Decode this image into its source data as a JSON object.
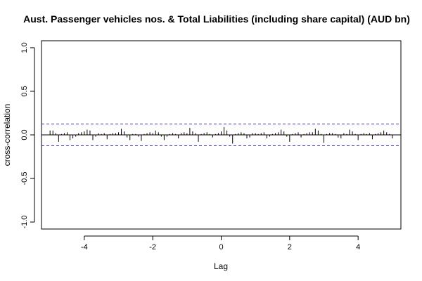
{
  "chart_data": {
    "type": "bar",
    "title": "Aust. Passenger vehicles nos. & Total Liabilities (including share capital) (AUD bn)",
    "xlabel": "Lag",
    "ylabel": "cross-correlation",
    "xlim": [
      -5.25,
      5.25
    ],
    "ylim": [
      -1.08,
      1.08
    ],
    "x_ticks": [
      -4,
      -2,
      0,
      2,
      4
    ],
    "x_tick_labels": [
      "-4",
      "-2",
      "0",
      "2",
      "4"
    ],
    "y_ticks": [
      -1.0,
      -0.5,
      0.0,
      0.5,
      1.0
    ],
    "y_tick_labels": [
      "-1.0",
      "-0.5",
      "0.0",
      "0.5",
      "1.0"
    ],
    "confidence_bound": 0.125,
    "confidence_color": "#3333cc",
    "bar_color": "#000000",
    "zero_line": true,
    "x_start": -5.0,
    "x_end": 5.0,
    "x_step": 0.0833333,
    "values": [
      0.05,
      0.05,
      0.02,
      -0.08,
      0.01,
      0.02,
      0.03,
      -0.06,
      -0.04,
      -0.02,
      0.02,
      0.03,
      0.04,
      0.06,
      0.05,
      -0.06,
      -0.02,
      0.02,
      0.01,
      0.02,
      -0.05,
      0.01,
      0.02,
      0.02,
      0.03,
      0.07,
      0.04,
      -0.03,
      -0.06,
      0.01,
      0.01,
      -0.02,
      -0.07,
      0.01,
      0.02,
      0.03,
      0.02,
      0.05,
      0.03,
      -0.02,
      -0.06,
      -0.02,
      0.01,
      0.02,
      0.01,
      -0.04,
      0.02,
      0.03,
      0.02,
      0.08,
      0.04,
      0.02,
      -0.08,
      0.01,
      0.02,
      0.03,
      0.01,
      -0.03,
      0.01,
      0.02,
      0.04,
      0.09,
      0.05,
      -0.02,
      -0.1,
      0.01,
      0.02,
      0.03,
      0.02,
      -0.04,
      -0.03,
      0.02,
      0.02,
      0.01,
      0.02,
      0.03,
      -0.04,
      -0.02,
      0.01,
      0.02,
      0.03,
      0.06,
      0.04,
      -0.02,
      -0.08,
      0.01,
      0.02,
      0.03,
      -0.03,
      0.01,
      0.02,
      0.03,
      0.03,
      0.07,
      0.05,
      0.01,
      -0.09,
      0.01,
      0.02,
      0.02,
      0.01,
      -0.03,
      -0.04,
      0.02,
      0.01,
      0.06,
      0.04,
      0.01,
      -0.06,
      0.01,
      0.02,
      0.01,
      0.02,
      -0.05,
      0.01,
      0.02,
      0.03,
      0.05,
      0.03,
      0.01,
      -0.04
    ]
  }
}
